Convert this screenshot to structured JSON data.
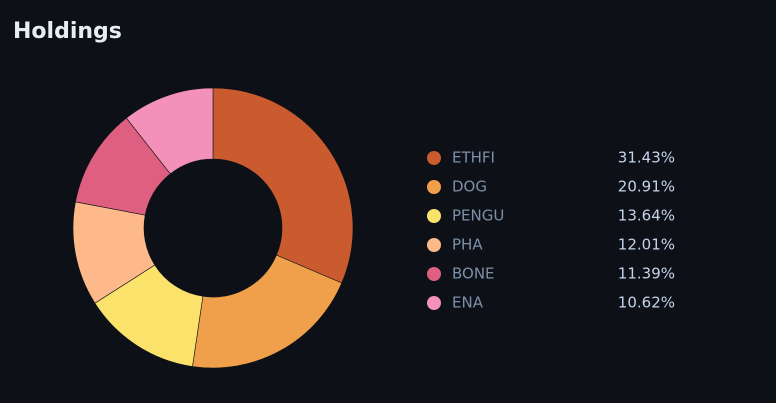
{
  "chart_data": {
    "type": "donut",
    "title": "Holdings",
    "categories": [
      "ETHFI",
      "DOG",
      "PENGU",
      "PHA",
      "BONE",
      "ENA"
    ],
    "values": [
      31.43,
      20.91,
      13.64,
      12.01,
      11.39,
      10.62
    ],
    "value_labels": [
      "31.43%",
      "20.91%",
      "13.64%",
      "12.01%",
      "11.39%",
      "10.62%"
    ],
    "colors": [
      "#c95b2f",
      "#f0a04b",
      "#fbe36b",
      "#fdb98a",
      "#df5f80",
      "#f491b8"
    ],
    "legend": "right"
  }
}
